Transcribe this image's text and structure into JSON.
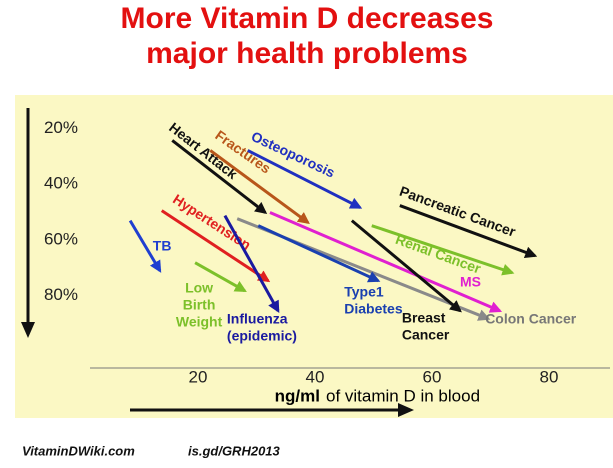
{
  "chart_data": {
    "type": "arrow",
    "title": [
      "More Vitamin D decreases",
      "major health problems"
    ],
    "xlabel_unit": "ng/ml",
    "xlabel": "of vitamin D in blood",
    "footer": [
      "VitaminDWiki.com",
      "is.gd/GRH2013"
    ],
    "xlim": [
      2,
      90
    ],
    "xticks": [
      20,
      40,
      60,
      80
    ],
    "ylim": [
      8,
      106
    ],
    "y_inverted": true,
    "yticks": [
      {
        "value": 20,
        "label": "20%"
      },
      {
        "value": 40,
        "label": "40%"
      },
      {
        "value": 60,
        "label": "60%"
      },
      {
        "value": 80,
        "label": "80%"
      }
    ],
    "series": [
      {
        "name": "TB",
        "color": "#1f3fd0",
        "x": [
          8.4,
          13.5
        ],
        "values": [
          53.1,
          71.1
        ]
      },
      {
        "name": "Hypertension",
        "color": "#e02020",
        "x": [
          13.8,
          32.0
        ],
        "values": [
          49.5,
          74.7
        ]
      },
      {
        "name": "Low Birth Weight",
        "color": "#7cc02a",
        "x": [
          19.5,
          28.0
        ],
        "values": [
          68.2,
          78.3
        ]
      },
      {
        "name": "Influenza (epidemic)",
        "color": "#1a1aa0",
        "x": [
          24.6,
          33.7
        ],
        "values": [
          51.3,
          85.5
        ]
      },
      {
        "name": "Heart Attack",
        "color": "#111111",
        "x": [
          15.6,
          31.5
        ],
        "values": [
          24.3,
          50.2
        ]
      },
      {
        "name": "Fractures",
        "color": "#b8561a",
        "x": [
          22.1,
          38.8
        ],
        "values": [
          27.9,
          53.8
        ]
      },
      {
        "name": "Osteoporosis",
        "color": "#2030c0",
        "x": [
          28.5,
          47.7
        ],
        "values": [
          27.9,
          48.4
        ]
      },
      {
        "name": "Colon Cancer",
        "color": "#8a8a8a",
        "x": [
          26.7,
          69.6
        ],
        "values": [
          52.4,
          88.3
        ]
      },
      {
        "name": "Type1 Diabetes",
        "color": "#1a40b0",
        "x": [
          30.3,
          50.8
        ],
        "values": [
          54.9,
          74.7
        ]
      },
      {
        "name": "MS",
        "color": "#e020d0",
        "x": [
          32.3,
          71.6
        ],
        "values": [
          50.2,
          85.5
        ]
      },
      {
        "name": "Breast Cancer",
        "color": "#111111",
        "x": [
          46.3,
          64.8
        ],
        "values": [
          53.1,
          85.5
        ]
      },
      {
        "name": "Renal Cancer",
        "color": "#7cc02a",
        "x": [
          49.7,
          73.7
        ],
        "values": [
          54.9,
          71.8
        ]
      },
      {
        "name": "Pancreatic Cancer",
        "color": "#111111",
        "x": [
          54.5,
          77.6
        ],
        "values": [
          47.7,
          65.7
        ]
      }
    ]
  }
}
